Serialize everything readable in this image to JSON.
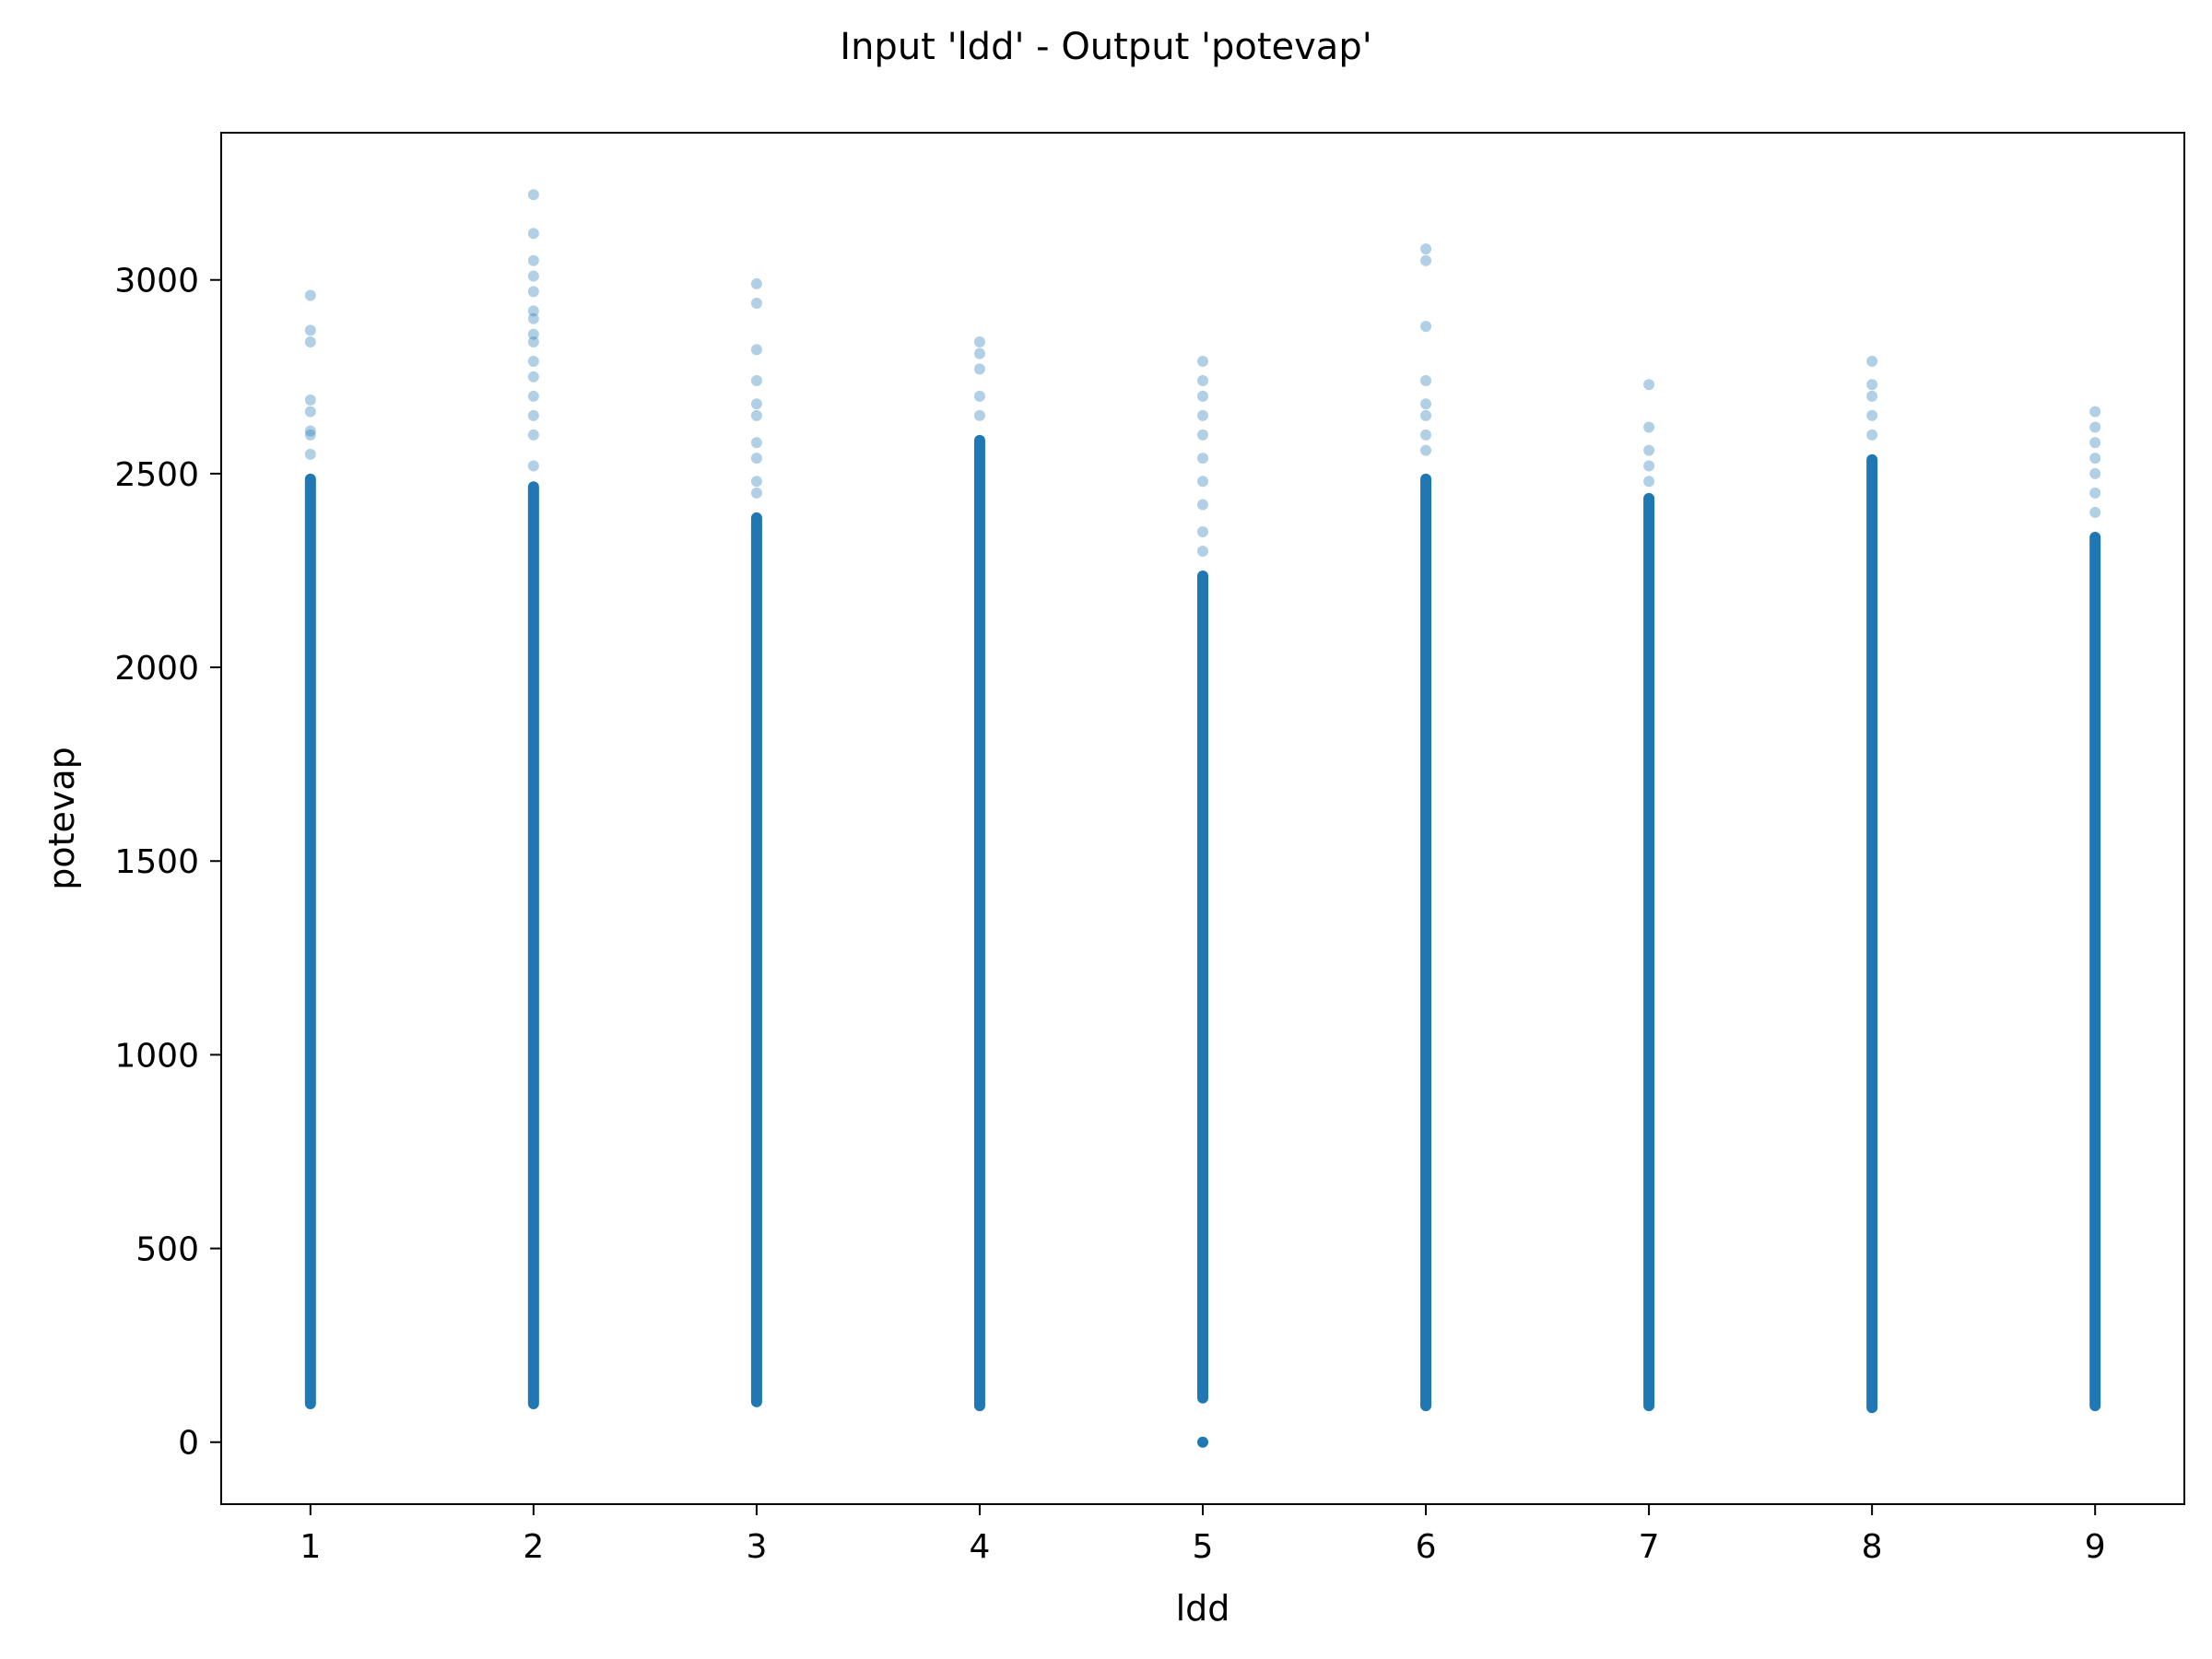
{
  "chart_data": {
    "type": "scatter",
    "title": "Input 'ldd' - Output 'potevap'",
    "xlabel": "ldd",
    "ylabel": "potevap",
    "xlim": [
      0.6,
      9.4
    ],
    "ylim": [
      -160,
      3380
    ],
    "xticks": [
      1,
      2,
      3,
      4,
      5,
      6,
      7,
      8,
      9
    ],
    "yticks": [
      0,
      500,
      1000,
      1500,
      2000,
      2500,
      3000
    ],
    "grid": false,
    "legend": "none",
    "point_color": "#1f77b4",
    "point_alpha": 0.25,
    "series": [
      {
        "columns": [
          {
            "x": 1,
            "dense_range": [
              85,
              2500
            ],
            "outliers": [
              2550,
              2600,
              2610,
              2660,
              2690,
              2840,
              2870,
              2960
            ]
          },
          {
            "x": 2,
            "dense_range": [
              85,
              2480
            ],
            "outliers": [
              2520,
              2600,
              2650,
              2700,
              2750,
              2790,
              2840,
              2860,
              2900,
              2920,
              2970,
              3010,
              3050,
              3120,
              3220
            ]
          },
          {
            "x": 3,
            "dense_range": [
              90,
              2400
            ],
            "outliers": [
              2450,
              2480,
              2540,
              2580,
              2650,
              2680,
              2740,
              2820,
              2940,
              2990
            ]
          },
          {
            "x": 4,
            "dense_range": [
              80,
              2600
            ],
            "outliers": [
              2650,
              2700,
              2770,
              2810,
              2840
            ]
          },
          {
            "x": 5,
            "dense_range": [
              100,
              2250
            ],
            "outliers": [
              0,
              2300,
              2350,
              2420,
              2480,
              2540,
              2600,
              2650,
              2700,
              2740,
              2790
            ]
          },
          {
            "x": 6,
            "dense_range": [
              80,
              2500
            ],
            "outliers": [
              2560,
              2600,
              2650,
              2680,
              2740,
              2880,
              3050,
              3080
            ]
          },
          {
            "x": 7,
            "dense_range": [
              80,
              2450
            ],
            "outliers": [
              2480,
              2520,
              2560,
              2620,
              2730
            ]
          },
          {
            "x": 8,
            "dense_range": [
              75,
              2550
            ],
            "outliers": [
              2600,
              2650,
              2700,
              2730,
              2790
            ]
          },
          {
            "x": 9,
            "dense_range": [
              80,
              2350
            ],
            "outliers": [
              2400,
              2450,
              2500,
              2540,
              2580,
              2620,
              2660
            ]
          }
        ]
      }
    ]
  }
}
